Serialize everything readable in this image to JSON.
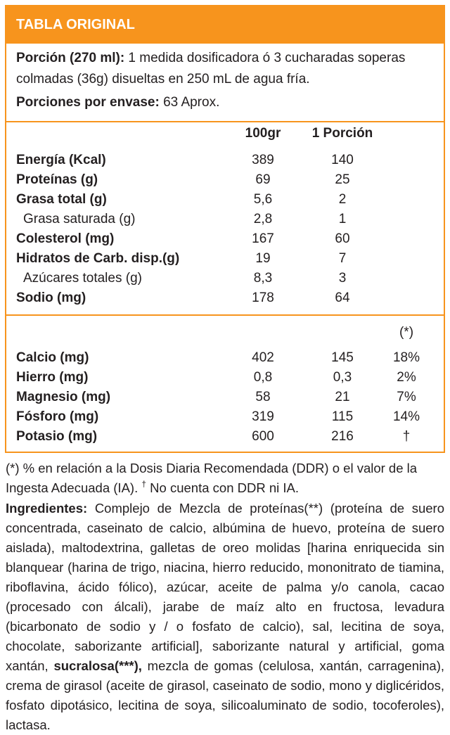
{
  "header": {
    "title": "TABLA ORIGINAL"
  },
  "serving": {
    "portion_label": "Porción (270 ml):",
    "portion_text": " 1 medida dosificadora ó 3 cucharadas soperas colmadas (36g) disueltas en 250 mL de agua fría.",
    "per_pack_label": "Porciones por envase:",
    "per_pack_text": " 63 Aprox."
  },
  "columns": {
    "c1": "100gr",
    "c2": "1 Porción",
    "c3": "(*)"
  },
  "nutrients": [
    {
      "label": "Energía (Kcal)",
      "v100": "389",
      "vportion": "140"
    },
    {
      "label": "Proteínas (g)",
      "v100": "69",
      "vportion": "25"
    },
    {
      "label": "Grasa total (g)",
      "v100": "5,6",
      "vportion": "2"
    },
    {
      "label": "Grasa saturada (g)",
      "v100": "2,8",
      "vportion": "1"
    },
    {
      "label": "Colesterol (mg)",
      "v100": "167",
      "vportion": "60"
    },
    {
      "label": "Hidratos de Carb. disp.(g)",
      "v100": "19",
      "vportion": "7"
    },
    {
      "label": "Azúcares totales (g)",
      "v100": "8,3",
      "vportion": "3"
    },
    {
      "label": "Sodio (mg)",
      "v100": "178",
      "vportion": "64"
    }
  ],
  "minerals": [
    {
      "label": "Calcio (mg)",
      "v100": "402",
      "vportion": "145",
      "pct": "18%"
    },
    {
      "label": "Hierro (mg)",
      "v100": "0,8",
      "vportion": "0,3",
      "pct": "2%"
    },
    {
      "label": "Magnesio (mg)",
      "v100": "58",
      "vportion": "21",
      "pct": "7%"
    },
    {
      "label": "Fósforo (mg)",
      "v100": "319",
      "vportion": "115",
      "pct": "14%"
    },
    {
      "label": "Potasio (mg)",
      "v100": "600",
      "vportion": "216",
      "pct": "†"
    }
  ],
  "footnote": {
    "text": "(*) % en relación a la Dosis Diaria Recomendada (DDR) o el valor de la Ingesta Adecuada (IA).",
    "dagger": "†",
    "dagger_text": " No cuenta con DDR ni IA."
  },
  "ingredients": {
    "label": "Ingredientes:",
    "text_a": " Complejo de Mezcla de proteínas(**) (proteína de suero concentrada, caseinato de calcio, albúmina de huevo, proteína de suero aislada), maltodextrina, galletas de oreo molidas [harina enriquecida sin blanquear (harina de trigo, niacina, hierro reducido, mononitrato de tiamina, riboflavina, ácido fólico), azúcar, aceite de palma y/o canola, cacao (procesado con álcali), jarabe de maíz alto en fructosa, levadura (bicarbonato de sodio y / o fosfato de calcio), sal, lecitina de soya, chocolate, saborizante artificial], saborizante natural y artificial, goma xantán, ",
    "bold_b": "sucralosa(***),",
    "text_c": " mezcla de gomas (celulosa, xantán, carragenina), crema de girasol (aceite de girasol, caseinato de sodio, mono y diglicéridos, fosfato dipotásico, lecitina de soya, silicoaluminato de sodio, tocoferoles), lactasa."
  }
}
